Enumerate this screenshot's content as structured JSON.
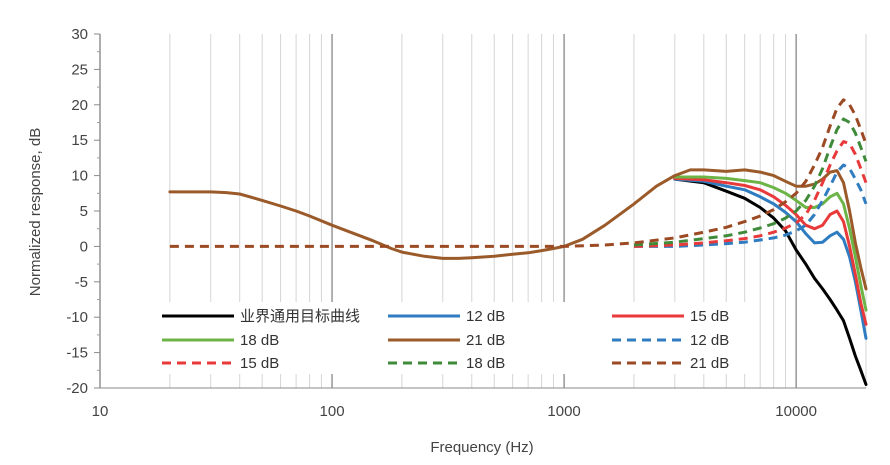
{
  "chart_data": {
    "type": "line",
    "xlabel": "Frequency (Hz)",
    "ylabel": "Normalized response, dB",
    "xscale": "log",
    "xlim": [
      10,
      20000
    ],
    "ylim": [
      -20,
      30
    ],
    "x_ticks": [
      {
        "value": 10,
        "label": "10"
      },
      {
        "value": 100,
        "label": "100"
      },
      {
        "value": 1000,
        "label": "1000"
      },
      {
        "value": 10000,
        "label": "10000"
      }
    ],
    "y_ticks": [
      {
        "value": 30,
        "label": "30"
      },
      {
        "value": 25,
        "label": "25"
      },
      {
        "value": 20,
        "label": "20"
      },
      {
        "value": 15,
        "label": "15"
      },
      {
        "value": 10,
        "label": "10"
      },
      {
        "value": 5,
        "label": "5"
      },
      {
        "value": 0,
        "label": "0"
      },
      {
        "value": -5,
        "label": "-5"
      },
      {
        "value": -10,
        "label": "-10"
      },
      {
        "value": -15,
        "label": "-15"
      },
      {
        "value": -20,
        "label": "-20"
      }
    ],
    "grid": "vertical-log",
    "legend_position": "bottom-inside",
    "series": [
      {
        "name": "业界通用目标曲线",
        "color": "#000000",
        "dash": "solid",
        "points": [
          [
            3000,
            9.5
          ],
          [
            4000,
            9
          ],
          [
            5000,
            7.8
          ],
          [
            6000,
            6.8
          ],
          [
            7000,
            5.5
          ],
          [
            8000,
            4
          ],
          [
            9000,
            2.2
          ],
          [
            10000,
            -0.5
          ],
          [
            11000,
            -2.5
          ],
          [
            12000,
            -4.5
          ],
          [
            13000,
            -6
          ],
          [
            14000,
            -7.5
          ],
          [
            15000,
            -9
          ],
          [
            16000,
            -10.5
          ],
          [
            17000,
            -13
          ],
          [
            18000,
            -15.5
          ],
          [
            19000,
            -17.5
          ],
          [
            20000,
            -19.5
          ]
        ]
      },
      {
        "name": "12 dB",
        "color": "#2f7cc1",
        "dash": "solid",
        "points": [
          [
            3000,
            9.5
          ],
          [
            4000,
            9.2
          ],
          [
            5000,
            8.5
          ],
          [
            6000,
            8
          ],
          [
            7000,
            7
          ],
          [
            8000,
            6
          ],
          [
            9000,
            4.8
          ],
          [
            10000,
            3.5
          ],
          [
            11000,
            1.8
          ],
          [
            12000,
            0.5
          ],
          [
            13000,
            0.6
          ],
          [
            14000,
            1.5
          ],
          [
            15000,
            2
          ],
          [
            16000,
            1
          ],
          [
            17000,
            -1.5
          ],
          [
            18000,
            -5
          ],
          [
            19000,
            -9
          ],
          [
            20000,
            -13
          ]
        ]
      },
      {
        "name": "15 dB",
        "color": "#e83a3a",
        "dash": "solid",
        "points": [
          [
            3000,
            9.6
          ],
          [
            4000,
            9.4
          ],
          [
            5000,
            9
          ],
          [
            6000,
            8.6
          ],
          [
            7000,
            8
          ],
          [
            8000,
            7
          ],
          [
            9000,
            5.8
          ],
          [
            10000,
            4.5
          ],
          [
            11000,
            3
          ],
          [
            12000,
            2.5
          ],
          [
            13000,
            3
          ],
          [
            14000,
            4.5
          ],
          [
            15000,
            5
          ],
          [
            16000,
            3.5
          ],
          [
            17000,
            0
          ],
          [
            18000,
            -4
          ],
          [
            19000,
            -8
          ],
          [
            20000,
            -11
          ]
        ]
      },
      {
        "name": "18 dB",
        "color": "#6cb446",
        "dash": "solid",
        "points": [
          [
            3000,
            9.8
          ],
          [
            4000,
            9.8
          ],
          [
            5000,
            9.6
          ],
          [
            6000,
            9.3
          ],
          [
            7000,
            9
          ],
          [
            8000,
            8.3
          ],
          [
            9000,
            7.5
          ],
          [
            10000,
            6.5
          ],
          [
            11000,
            5.5
          ],
          [
            12000,
            5.5
          ],
          [
            13000,
            6
          ],
          [
            14000,
            7
          ],
          [
            15000,
            7.5
          ],
          [
            16000,
            6
          ],
          [
            17000,
            2.5
          ],
          [
            18000,
            -1.5
          ],
          [
            19000,
            -5.5
          ],
          [
            20000,
            -9
          ]
        ]
      },
      {
        "name": "21 dB",
        "color": "#9b5a2a",
        "dash": "solid",
        "points": [
          [
            20,
            7.7
          ],
          [
            25,
            7.7
          ],
          [
            30,
            7.7
          ],
          [
            35,
            7.6
          ],
          [
            40,
            7.4
          ],
          [
            50,
            6.5
          ],
          [
            60,
            5.7
          ],
          [
            70,
            5
          ],
          [
            80,
            4.3
          ],
          [
            100,
            3
          ],
          [
            120,
            2
          ],
          [
            150,
            0.8
          ],
          [
            180,
            -0.3
          ],
          [
            200,
            -0.8
          ],
          [
            250,
            -1.4
          ],
          [
            300,
            -1.7
          ],
          [
            350,
            -1.7
          ],
          [
            400,
            -1.6
          ],
          [
            500,
            -1.4
          ],
          [
            600,
            -1.1
          ],
          [
            700,
            -0.9
          ],
          [
            800,
            -0.6
          ],
          [
            900,
            -0.3
          ],
          [
            1000,
            0
          ],
          [
            1200,
            1
          ],
          [
            1500,
            3
          ],
          [
            2000,
            6
          ],
          [
            2500,
            8.5
          ],
          [
            3000,
            10
          ],
          [
            3500,
            10.8
          ],
          [
            4000,
            10.8
          ],
          [
            5000,
            10.6
          ],
          [
            6000,
            10.8
          ],
          [
            7000,
            10.5
          ],
          [
            8000,
            10
          ],
          [
            9000,
            9.2
          ],
          [
            10000,
            8.5
          ],
          [
            11000,
            8.5
          ],
          [
            12000,
            8.8
          ],
          [
            13000,
            9.5
          ],
          [
            14000,
            10.5
          ],
          [
            15000,
            10.7
          ],
          [
            16000,
            9
          ],
          [
            17000,
            5
          ],
          [
            18000,
            0.5
          ],
          [
            19000,
            -3
          ],
          [
            20000,
            -6
          ]
        ]
      },
      {
        "name": "12 dB",
        "color": "#2f7cc1",
        "dash": "dashed",
        "points": [
          [
            2000,
            0
          ],
          [
            3000,
            0
          ],
          [
            4000,
            0.2
          ],
          [
            5000,
            0.4
          ],
          [
            6000,
            0.6
          ],
          [
            7000,
            0.9
          ],
          [
            8000,
            1.2
          ],
          [
            9000,
            1.6
          ],
          [
            10000,
            2.2
          ],
          [
            11000,
            3
          ],
          [
            12000,
            4.5
          ],
          [
            13000,
            6.5
          ],
          [
            14000,
            8.5
          ],
          [
            15000,
            10.5
          ],
          [
            16000,
            11.5
          ],
          [
            17000,
            11
          ],
          [
            18000,
            9.5
          ],
          [
            19000,
            8
          ],
          [
            20000,
            6
          ]
        ]
      },
      {
        "name": "15 dB",
        "color": "#e83a3a",
        "dash": "dashed",
        "points": [
          [
            2000,
            0
          ],
          [
            3000,
            0.2
          ],
          [
            4000,
            0.5
          ],
          [
            5000,
            0.8
          ],
          [
            6000,
            1.1
          ],
          [
            7000,
            1.5
          ],
          [
            8000,
            2
          ],
          [
            9000,
            2.6
          ],
          [
            10000,
            3.3
          ],
          [
            11000,
            4.5
          ],
          [
            12000,
            6.5
          ],
          [
            13000,
            9
          ],
          [
            14000,
            11.5
          ],
          [
            15000,
            13.5
          ],
          [
            16000,
            14.8
          ],
          [
            17000,
            14.5
          ],
          [
            18000,
            13
          ],
          [
            19000,
            11
          ],
          [
            20000,
            9
          ]
        ]
      },
      {
        "name": "18 dB",
        "color": "#3f8b3a",
        "dash": "dashed",
        "points": [
          [
            2000,
            0.2
          ],
          [
            3000,
            0.6
          ],
          [
            4000,
            1.1
          ],
          [
            5000,
            1.5
          ],
          [
            6000,
            2
          ],
          [
            7000,
            2.6
          ],
          [
            8000,
            3.2
          ],
          [
            9000,
            4
          ],
          [
            10000,
            5
          ],
          [
            11000,
            6.5
          ],
          [
            12000,
            8.5
          ],
          [
            13000,
            11
          ],
          [
            14000,
            14
          ],
          [
            15000,
            16.5
          ],
          [
            16000,
            18
          ],
          [
            17000,
            17.5
          ],
          [
            18000,
            16
          ],
          [
            19000,
            14
          ],
          [
            20000,
            12
          ]
        ]
      },
      {
        "name": "21 dB",
        "color": "#9b4a23",
        "dash": "dashed",
        "points": [
          [
            20,
            0
          ],
          [
            100,
            0
          ],
          [
            200,
            0
          ],
          [
            500,
            0
          ],
          [
            1000,
            0
          ],
          [
            1500,
            0.2
          ],
          [
            2000,
            0.5
          ],
          [
            3000,
            1.2
          ],
          [
            4000,
            2
          ],
          [
            5000,
            2.7
          ],
          [
            6000,
            3.5
          ],
          [
            7000,
            4.3
          ],
          [
            8000,
            5.2
          ],
          [
            9000,
            6.3
          ],
          [
            10000,
            7.5
          ],
          [
            11000,
            9.2
          ],
          [
            12000,
            11.5
          ],
          [
            13000,
            14
          ],
          [
            14000,
            17
          ],
          [
            15000,
            19.5
          ],
          [
            16000,
            20.7
          ],
          [
            17000,
            20
          ],
          [
            18000,
            18.5
          ],
          [
            19000,
            16.5
          ],
          [
            20000,
            14.5
          ]
        ]
      }
    ]
  }
}
